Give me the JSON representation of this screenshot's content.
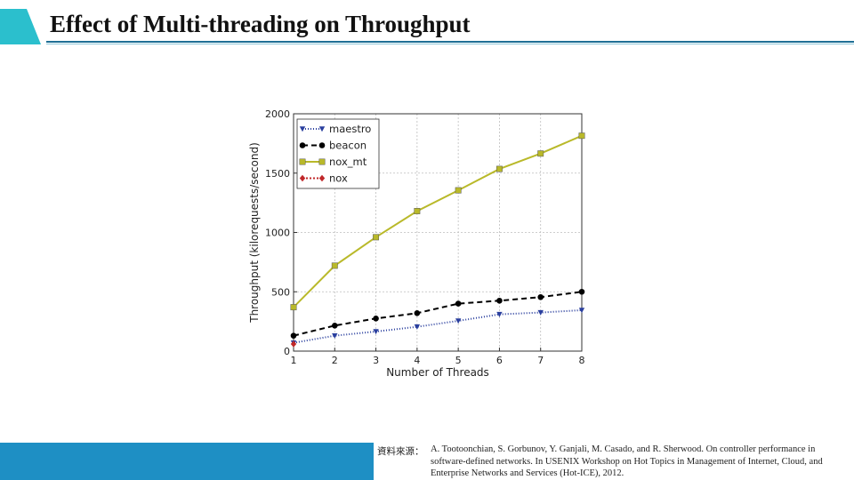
{
  "title": "Effect of Multi-threading on Throughput",
  "source_label": "資料來源：",
  "source_text": "A. Tootoonchian, S. Gorbunov, Y. Ganjali, M. Casado, and R. Sherwood. On controller performance in software-defined networks. In USENIX Workshop on Hot Topics in Management of Internet, Cloud, and Enterprise Networks and Services (Hot-ICE), 2012.",
  "colors": {
    "accent": "#2bbfcd",
    "footer": "#1e8fc4",
    "rule": "#1f6f96"
  },
  "chart_data": {
    "type": "line",
    "xlabel": "Number of Threads",
    "ylabel": "Throughput (kilorequests/second)",
    "x": [
      1,
      2,
      3,
      4,
      5,
      6,
      7,
      8
    ],
    "xlim": [
      1,
      8
    ],
    "ylim": [
      0,
      2000
    ],
    "yticks": [
      0,
      500,
      1000,
      1500,
      2000
    ],
    "grid": true,
    "legend": "top-left",
    "series": [
      {
        "name": "maestro",
        "values": [
          70,
          130,
          165,
          205,
          255,
          310,
          325,
          345
        ],
        "color": "#2a3f9e",
        "marker": "triangle-down",
        "dash": "1,2"
      },
      {
        "name": "beacon",
        "values": [
          130,
          215,
          275,
          320,
          400,
          425,
          455,
          500
        ],
        "color": "#000000",
        "marker": "circle",
        "dash": "6,4"
      },
      {
        "name": "nox_mt",
        "values": [
          370,
          720,
          960,
          1180,
          1355,
          1535,
          1665,
          1815
        ],
        "color": "#b9b92a",
        "marker": "square",
        "dash": ""
      },
      {
        "name": "nox",
        "values": [
          60,
          null,
          null,
          null,
          null,
          null,
          null,
          null
        ],
        "color": "#c0282a",
        "marker": "diamond",
        "dash": "2,2"
      }
    ]
  }
}
